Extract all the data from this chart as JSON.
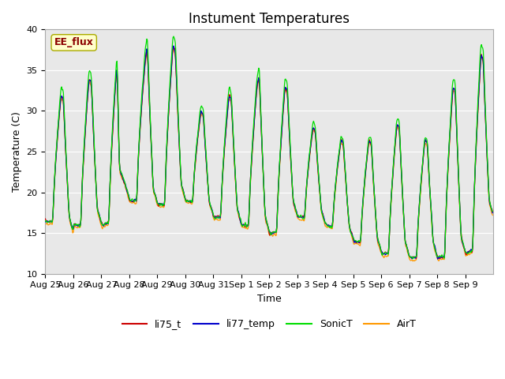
{
  "title": "Instument Temperatures",
  "xlabel": "Time",
  "ylabel": "Temperature (C)",
  "ylim": [
    10,
    40
  ],
  "line_colors": {
    "li75_t": "#cc0000",
    "li77_temp": "#0000cc",
    "SonicT": "#00dd00",
    "AirT": "#ff9900"
  },
  "annotation_text": "EE_flux",
  "annotation_color": "#8b0000",
  "annotation_bg": "#ffffcc",
  "annotation_edge": "#aaaa00",
  "background_color": "#e8e8e8",
  "title_fontsize": 12,
  "axis_fontsize": 9,
  "tick_fontsize": 8,
  "legend_fontsize": 9
}
